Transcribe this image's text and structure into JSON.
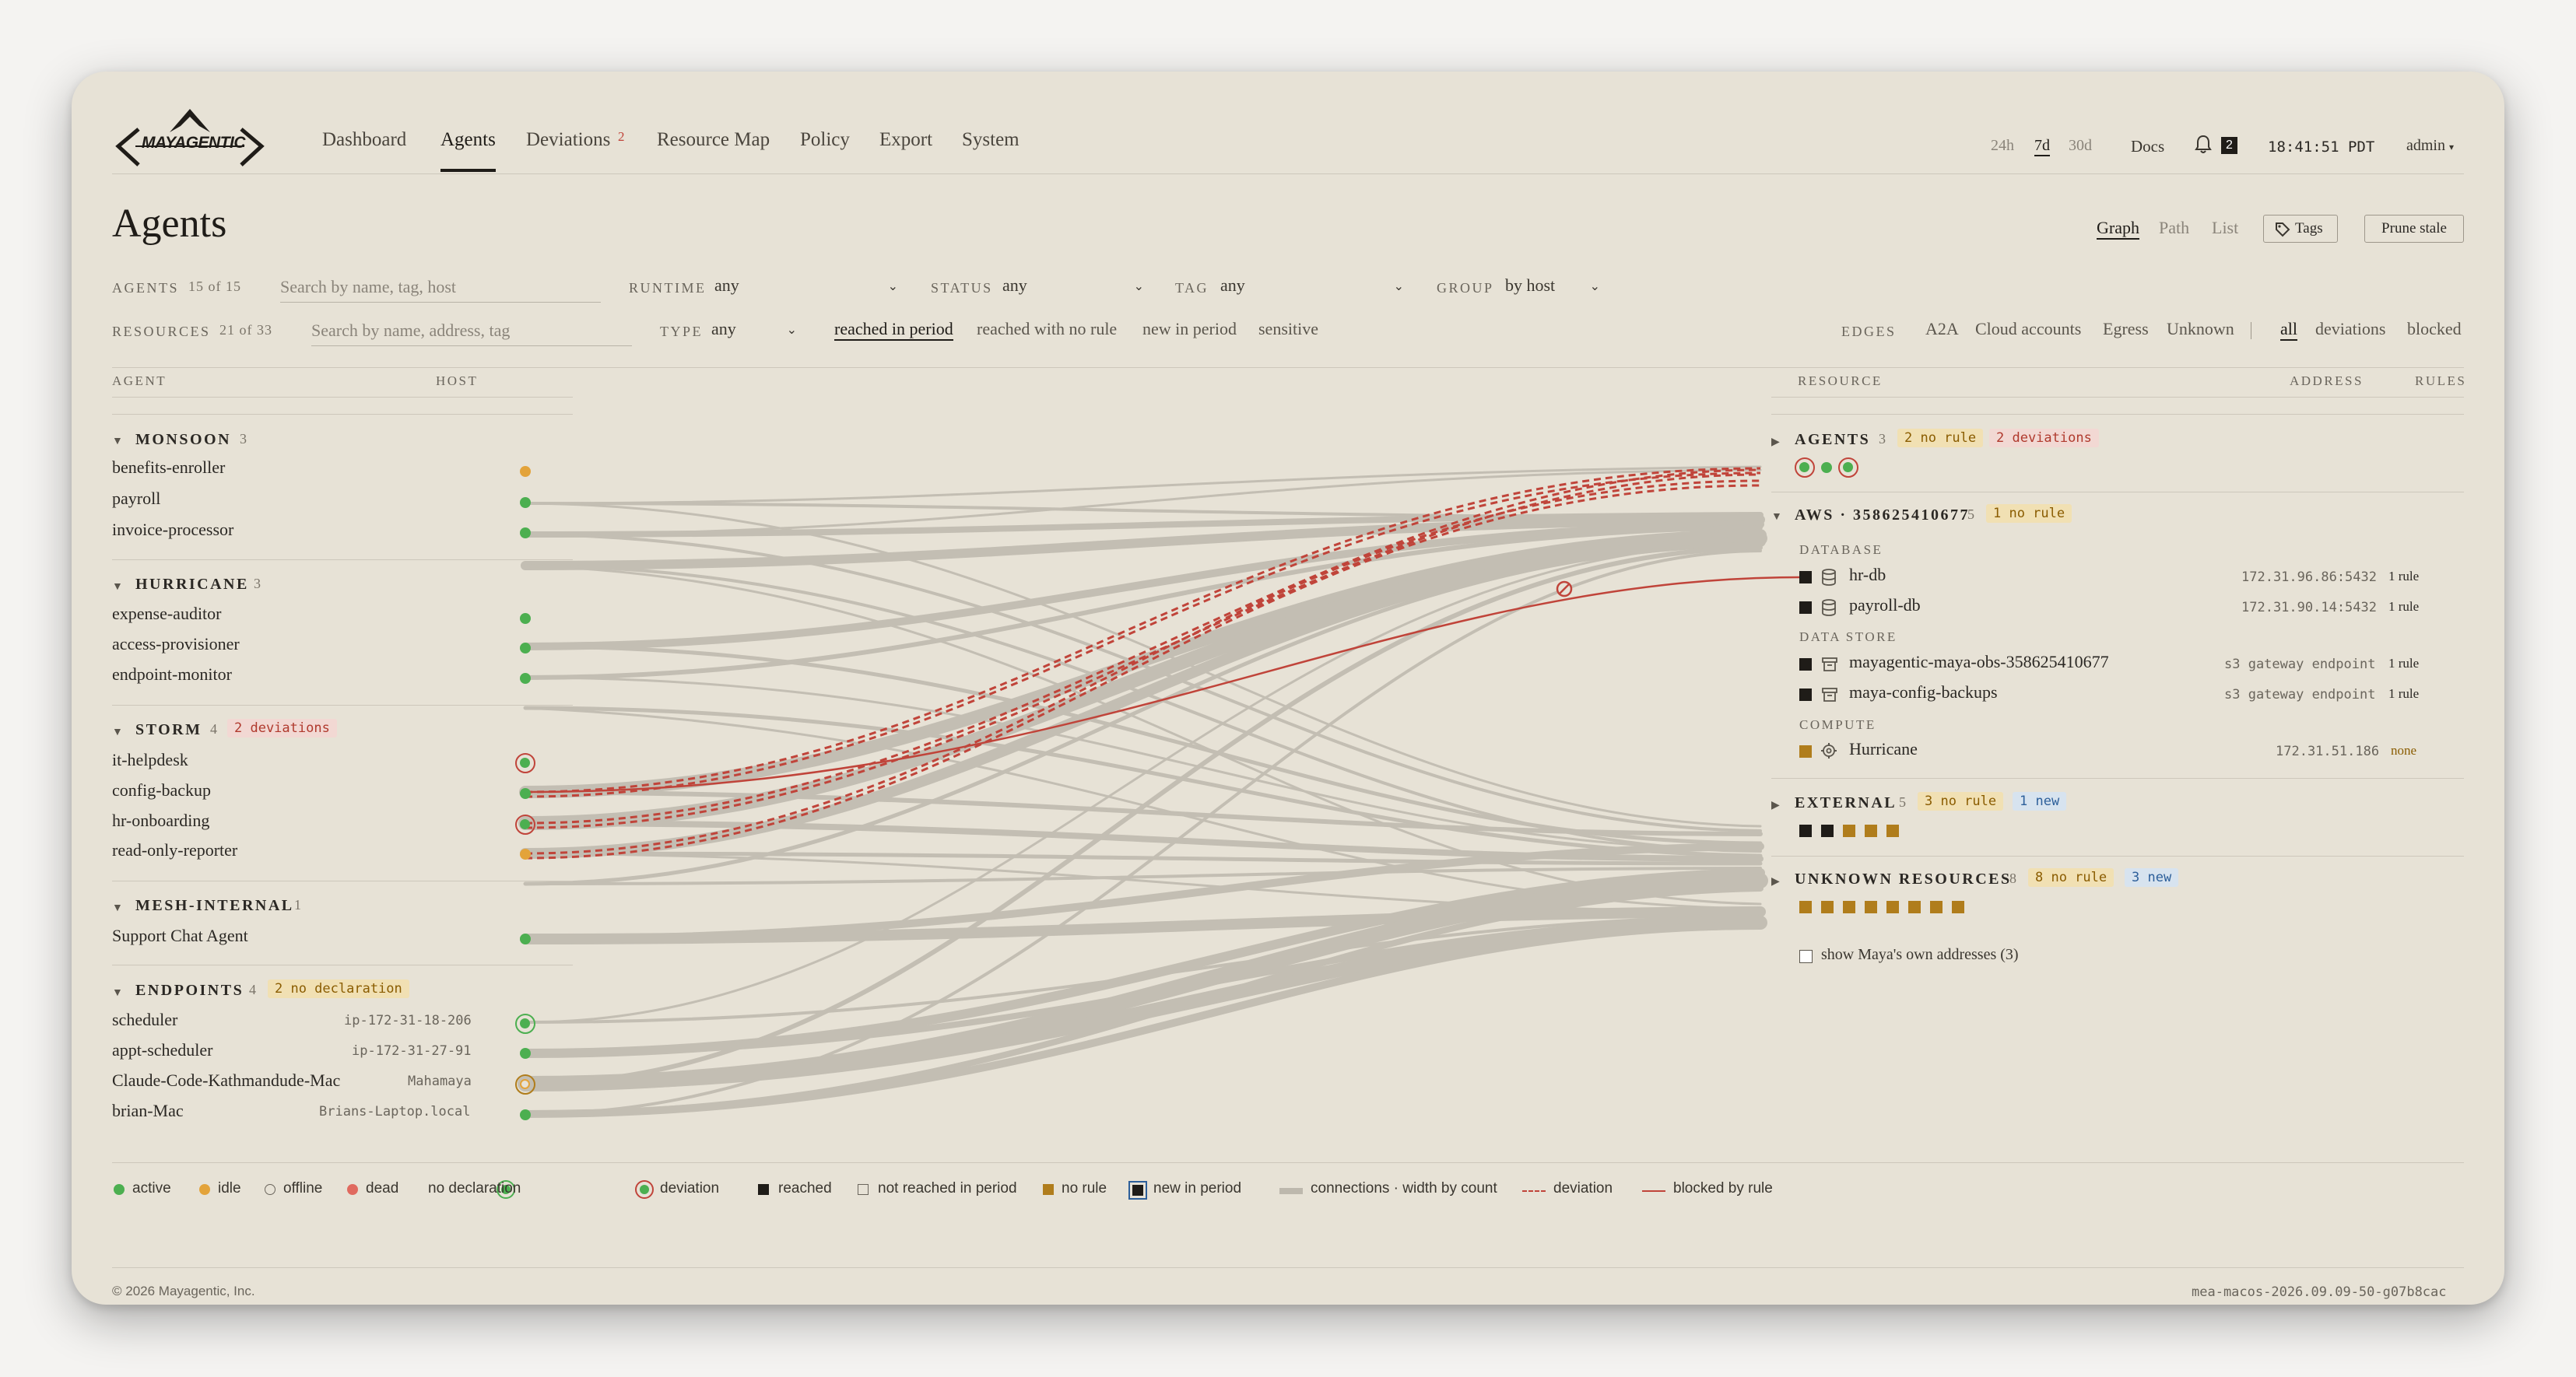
{
  "app": {
    "brand": "MAYAGENTIC",
    "nav": [
      "Dashboard",
      "Agents",
      "Deviations",
      "Resource Map",
      "Policy",
      "Export",
      "System"
    ],
    "deviations_badge": "2",
    "time_ranges": [
      "24h",
      "7d",
      "30d"
    ],
    "docs": "Docs",
    "notif_count": "2",
    "clock": "18:41:51 PDT",
    "user": "admin"
  },
  "page": {
    "title": "Agents",
    "views": [
      "Graph",
      "Path",
      "List"
    ],
    "tags_button": "Tags",
    "prune_button": "Prune stale"
  },
  "filters": {
    "agents_label": "AGENTS",
    "agents_count": "15 of 15",
    "agents_search_ph": "Search by name, tag, host",
    "runtime_label": "RUNTIME",
    "runtime_value": "any",
    "status_label": "STATUS",
    "status_value": "any",
    "tag_label": "TAG",
    "tag_value": "any",
    "group_label": "GROUP",
    "group_value": "by host",
    "resources_label": "RESOURCES",
    "resources_count": "21 of 33",
    "resources_search_ph": "Search by name, address, tag",
    "type_label": "TYPE",
    "type_value": "any",
    "period_tabs": [
      "reached in period",
      "reached with no rule",
      "new in period",
      "sensitive"
    ],
    "edges_label": "EDGES",
    "edge_types": [
      "A2A",
      "Cloud accounts",
      "Egress",
      "Unknown"
    ],
    "edge_filters": [
      "all",
      "deviations",
      "blocked"
    ]
  },
  "columns": {
    "agent": "AGENT",
    "host": "HOST",
    "resource": "RESOURCE",
    "address": "ADDRESS",
    "rules": "RULES"
  },
  "agent_groups": [
    {
      "name": "MONSOON",
      "count": "3",
      "badge": "",
      "agents": [
        {
          "name": "benefits-enroller",
          "host": "",
          "status": "idle"
        },
        {
          "name": "payroll",
          "host": "",
          "status": "active"
        },
        {
          "name": "invoice-processor",
          "host": "",
          "status": "active"
        }
      ]
    },
    {
      "name": "HURRICANE",
      "count": "3",
      "badge": "",
      "agents": [
        {
          "name": "expense-auditor",
          "host": "",
          "status": "active"
        },
        {
          "name": "access-provisioner",
          "host": "",
          "status": "active"
        },
        {
          "name": "endpoint-monitor",
          "host": "",
          "status": "active"
        }
      ]
    },
    {
      "name": "STORM",
      "count": "4",
      "badge": "2 deviations",
      "agents": [
        {
          "name": "it-helpdesk",
          "host": "",
          "status": "deviation"
        },
        {
          "name": "config-backup",
          "host": "",
          "status": "active"
        },
        {
          "name": "hr-onboarding",
          "host": "",
          "status": "deviation"
        },
        {
          "name": "read-only-reporter",
          "host": "",
          "status": "idle"
        }
      ]
    },
    {
      "name": "MESH-INTERNAL",
      "count": "1",
      "badge": "",
      "agents": [
        {
          "name": "Support Chat Agent",
          "host": "",
          "status": "active"
        }
      ]
    },
    {
      "name": "ENDPOINTS",
      "count": "4",
      "badge": "2 no declaration",
      "agents": [
        {
          "name": "scheduler",
          "host": "ip-172-31-18-206",
          "status": "no-declaration"
        },
        {
          "name": "appt-scheduler",
          "host": "ip-172-31-27-91",
          "status": "active"
        },
        {
          "name": "Claude-Code-Kathmandude-Mac",
          "host": "Mahamaya",
          "status": "no-declaration-idle"
        },
        {
          "name": "brian-Mac",
          "host": "Brians-Laptop.local",
          "status": "active"
        }
      ]
    }
  ],
  "resource_groups": {
    "agents": {
      "name": "AGENTS",
      "count": "3",
      "badge1": "2 no rule",
      "badge2": "2 deviations"
    },
    "aws": {
      "name": "AWS · 358625410677",
      "count": "5",
      "badge1": "1 no rule",
      "sections": [
        {
          "label": "DATABASE",
          "items": [
            {
              "name": "hr-db",
              "address": "172.31.96.86:5432",
              "rules": "1 rule"
            },
            {
              "name": "payroll-db",
              "address": "172.31.90.14:5432",
              "rules": "1 rule"
            }
          ]
        },
        {
          "label": "DATA STORE",
          "items": [
            {
              "name": "mayagentic-maya-obs-358625410677",
              "address": "s3 gateway endpoint",
              "rules": "1 rule"
            },
            {
              "name": "maya-config-backups",
              "address": "s3 gateway endpoint",
              "rules": "1 rule"
            }
          ]
        },
        {
          "label": "COMPUTE",
          "items": [
            {
              "name": "Hurricane",
              "address": "172.31.51.186",
              "rules": "none"
            }
          ]
        }
      ]
    },
    "external": {
      "name": "EXTERNAL",
      "count": "5",
      "badge1": "3 no rule",
      "badge2": "1 new"
    },
    "unknown": {
      "name": "UNKNOWN RESOURCES",
      "count": "8",
      "badge1": "8 no rule",
      "badge2": "3 new"
    },
    "show_own": "show Maya's own addresses (3)"
  },
  "legend": [
    "active",
    "idle",
    "offline",
    "dead",
    "no declaration",
    "deviation",
    "reached",
    "not reached in period",
    "no rule",
    "new in period",
    "connections · width by count",
    "deviation",
    "blocked by rule"
  ],
  "footer": {
    "copyright": "© 2026 Mayagentic, Inc.",
    "build": "mea-macos-2026.09.09-50-g07b8cac"
  },
  "colors": {
    "bg": "#e7e2d6",
    "active": "#4caf50",
    "idle": "#e3a33a",
    "deviation": "#c0443a",
    "edge": "#bdb8ad",
    "amber": "#b07d1c",
    "blue": "#2d5f9a"
  }
}
